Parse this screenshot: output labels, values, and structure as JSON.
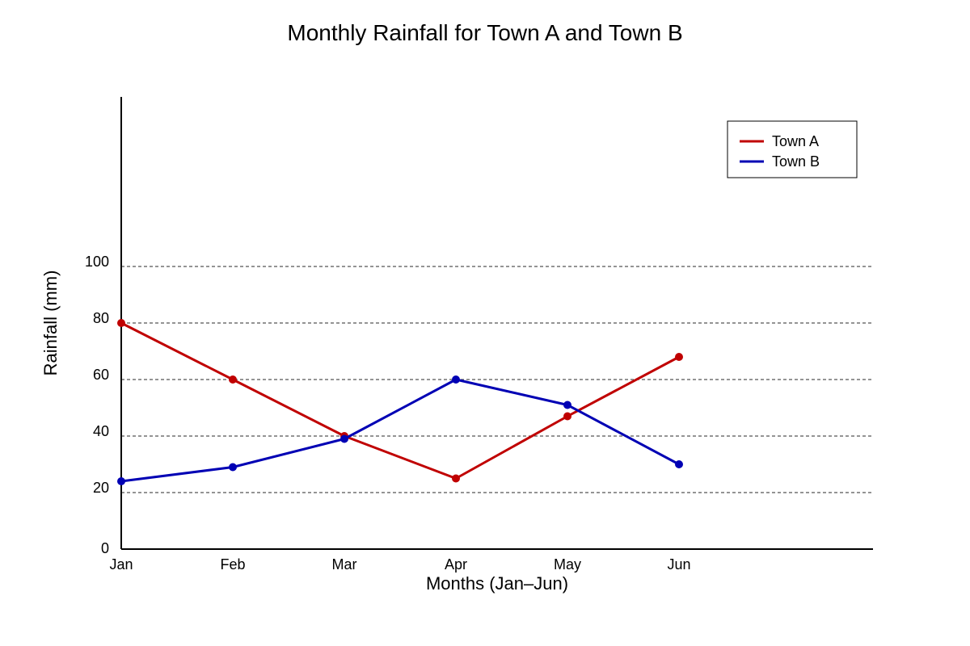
{
  "chart_data": {
    "type": "line",
    "title": "Monthly Rainfall for Town A and Town B",
    "xlabel": "Months (Jan–Jun)",
    "ylabel": "Rainfall (mm)",
    "categories": [
      "Jan",
      "Feb",
      "Mar",
      "Apr",
      "May",
      "Jun"
    ],
    "y_ticks": [
      0,
      20,
      40,
      60,
      80,
      100
    ],
    "ylim": [
      0,
      160
    ],
    "grid": "horizontal dashed",
    "legend_position": "top-right",
    "series": [
      {
        "name": "Town A",
        "color": "#c00000",
        "values": [
          80,
          60,
          40,
          25,
          47,
          68
        ]
      },
      {
        "name": "Town B",
        "color": "#0000b4",
        "values": [
          24,
          29,
          39,
          60,
          51,
          30
        ]
      }
    ]
  }
}
